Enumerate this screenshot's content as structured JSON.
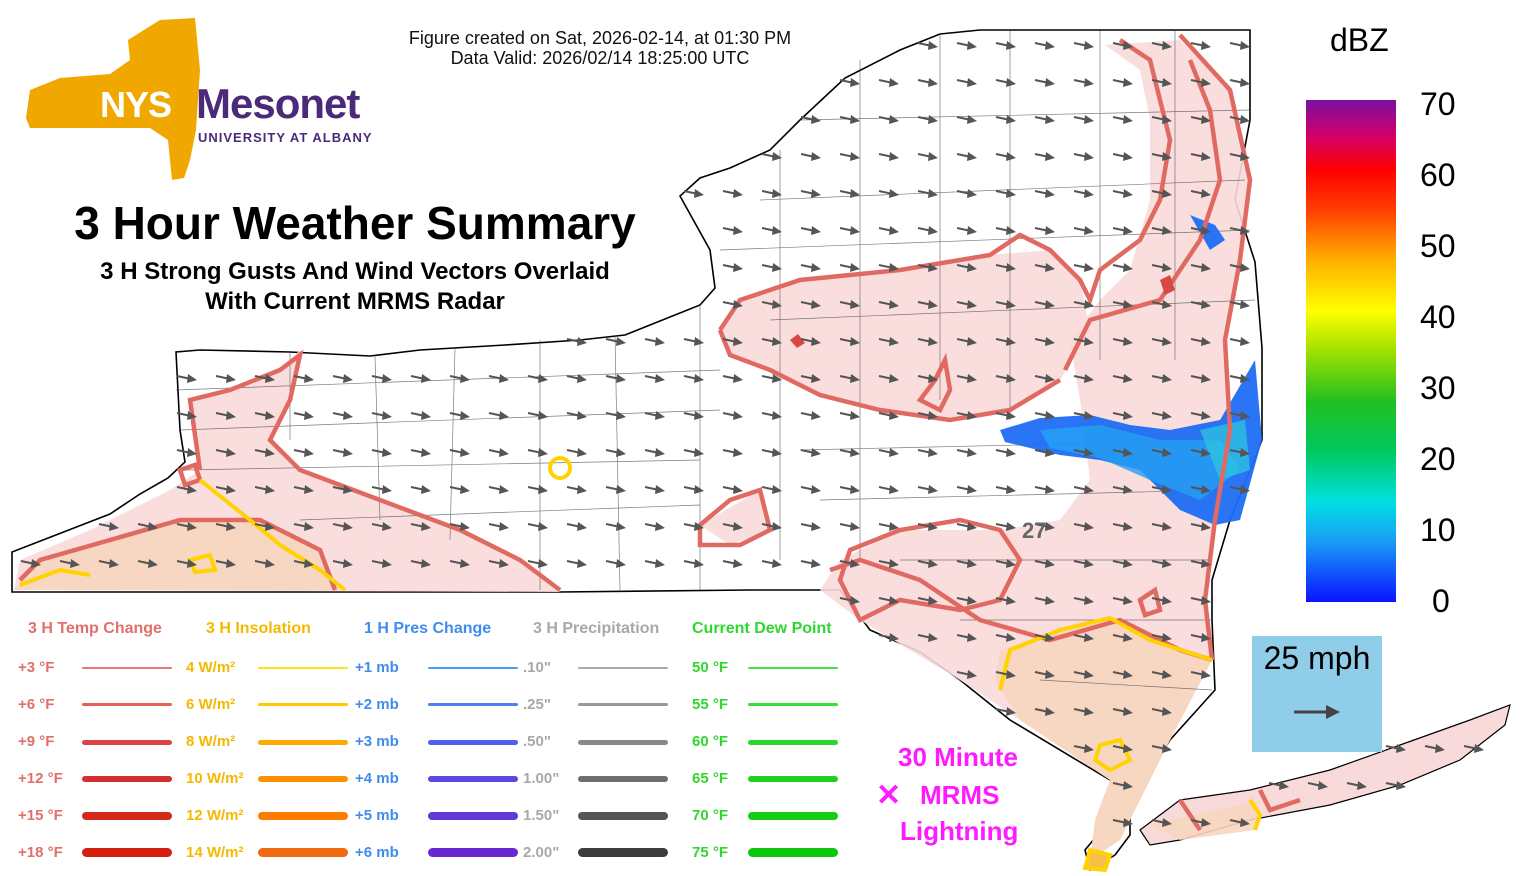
{
  "header": {
    "created": "Figure created on Sat, 2026-02-14, at 01:30 PM",
    "valid": "Data Valid: 2026/02/14 18:25:00 UTC"
  },
  "logo": {
    "nys": "NYS",
    "mesonet": "Mesonet",
    "university": "UNIVERSITY AT ALBANY",
    "colors": {
      "state": "#f0a800",
      "text": "#4b2a7a"
    }
  },
  "title": {
    "main": "3 Hour Weather Summary",
    "sub1": "3 H Strong Gusts And Wind Vectors Overlaid",
    "sub2": "With Current MRMS Radar"
  },
  "colorbar": {
    "unit": "dBZ",
    "ticks": [
      "70",
      "60",
      "50",
      "40",
      "30",
      "20",
      "10",
      "0"
    ]
  },
  "wind_reference": {
    "label": "25 mph",
    "box_color": "#8fcde9"
  },
  "station_value": "27",
  "lightning": {
    "line1": "30 Minute",
    "line2": "MRMS",
    "line3": "Lightning",
    "marker": "✕",
    "color": "#ff1aff"
  },
  "legend": {
    "temp": {
      "header": "3 H Temp Change",
      "color": "#e0706a",
      "rows": [
        "+3 °F",
        "+6 °F",
        "+9 °F",
        "+12 °F",
        "+15 °F",
        "+18 °F"
      ],
      "line_colors": [
        "#e87a72",
        "#e26058",
        "#da4444",
        "#d23030",
        "#d22a1a",
        "#d41e10"
      ]
    },
    "insolation": {
      "header": "3 H Insolation",
      "color": "#f5b800",
      "rows": [
        "4 W/m²",
        "6 W/m²",
        "8 W/m²",
        "10 W/m²",
        "12 W/m²",
        "14 W/m²"
      ],
      "line_colors": [
        "#ffe21a",
        "#ffc800",
        "#ffaa00",
        "#ff9000",
        "#ff7a00",
        "#f06a10"
      ]
    },
    "pressure": {
      "header": "1 H Pres Change",
      "color": "#3f8cf0",
      "rows": [
        "+1 mb",
        "+2 mb",
        "+3 mb",
        "+4 mb",
        "+5 mb",
        "+6 mb"
      ],
      "line_colors": [
        "#4a9cf5",
        "#4a80f0",
        "#5060e8",
        "#5a48e0",
        "#6038d8",
        "#6828d0"
      ]
    },
    "precip": {
      "header": "3 H Precipitation",
      "color": "#a8a8a8",
      "rows": [
        ".10\"",
        ".25\"",
        ".50\"",
        "1.00\"",
        "1.50\"",
        "2.00\""
      ],
      "line_colors": [
        "#aaaaaa",
        "#999999",
        "#888888",
        "#6e6e6e",
        "#555555",
        "#3c3c3c"
      ]
    },
    "dewpoint": {
      "header": "Current Dew Point",
      "color": "#2fd62f",
      "rows": [
        "50 °F",
        "55 °F",
        "60 °F",
        "65 °F",
        "70 °F",
        "75 °F"
      ],
      "line_colors": [
        "#44e344",
        "#38df38",
        "#2ad82a",
        "#20d020",
        "#16cc16",
        "#0cc80c"
      ]
    }
  }
}
